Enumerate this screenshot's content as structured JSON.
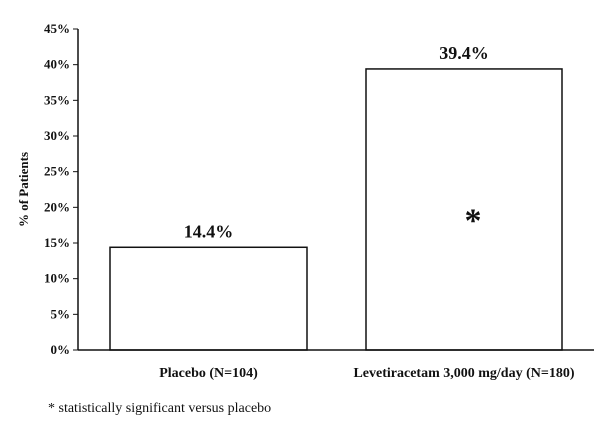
{
  "chart_data": {
    "type": "bar",
    "categories": [
      "Placebo (N=104)",
      "Levetiracetam 3,000 mg/day (N=180)"
    ],
    "values": [
      14.4,
      39.4
    ],
    "value_labels": [
      "14.4%",
      "39.4%"
    ],
    "ylabel": "% of Patients",
    "xlabel": "",
    "ylim": [
      0,
      45
    ],
    "yticks": [
      0,
      5,
      10,
      15,
      20,
      25,
      30,
      35,
      40,
      45
    ],
    "ytick_labels": [
      "0%",
      "5%",
      "10%",
      "15%",
      "20%",
      "25%",
      "30%",
      "35%",
      "40%",
      "45%"
    ],
    "grid": false,
    "bar_fill": "#ffffff",
    "bar_stroke": "#111111",
    "significance_marker": "*",
    "significance_marker_bar_index": 1
  },
  "footnote": "* statistically significant versus placebo"
}
